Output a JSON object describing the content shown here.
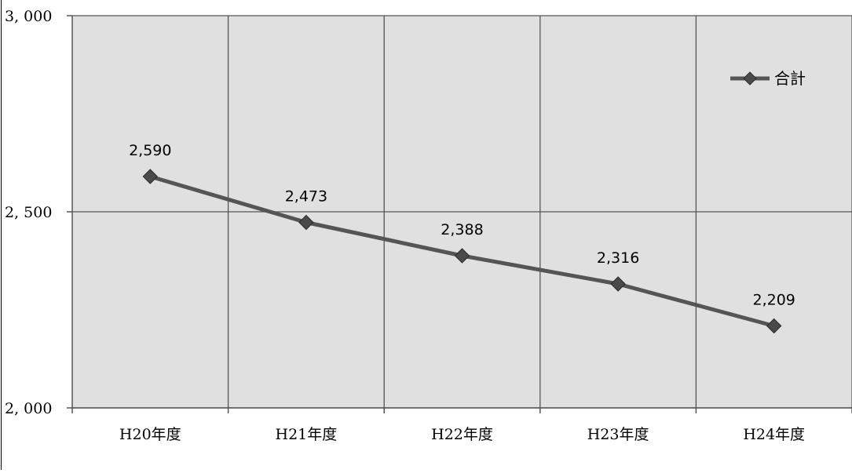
{
  "chart_data": {
    "type": "line",
    "categories": [
      "H20年度",
      "H21年度",
      "H22年度",
      "H23年度",
      "H24年度"
    ],
    "series": [
      {
        "name": "合計",
        "values": [
          2590,
          2473,
          2388,
          2316,
          2209
        ],
        "color": "#555555"
      }
    ],
    "data_labels": [
      "2,590",
      "2,473",
      "2,388",
      "2,316",
      "2,209"
    ],
    "y_ticks": [
      {
        "value": 2000,
        "label": "2, 000"
      },
      {
        "value": 2500,
        "label": "2, 500"
      },
      {
        "value": 3000,
        "label": "3, 000"
      }
    ],
    "ylim": [
      2000,
      3000
    ],
    "title": "",
    "xlabel": "",
    "ylabel": "",
    "grid": true,
    "legend_position": "top-right",
    "plot_background": "#e0e0e0",
    "gridline_color": "#555555"
  }
}
